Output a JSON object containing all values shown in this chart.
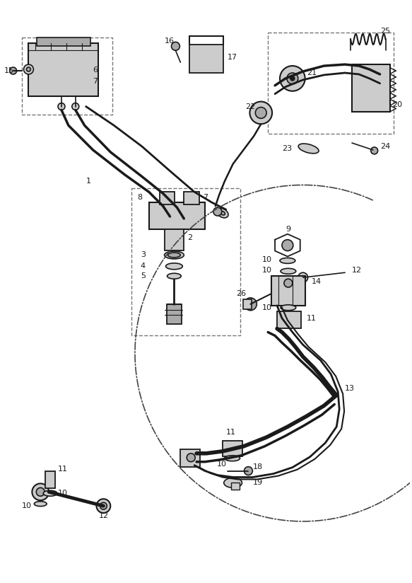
{
  "bg_color": "#ffffff",
  "line_color": "#1a1a1a",
  "gray_color": "#888888",
  "light_gray": "#cccccc",
  "mid_gray": "#aaaaaa",
  "dark_gray": "#555555",
  "figsize": [
    5.83,
    8.24
  ],
  "dpi": 100
}
